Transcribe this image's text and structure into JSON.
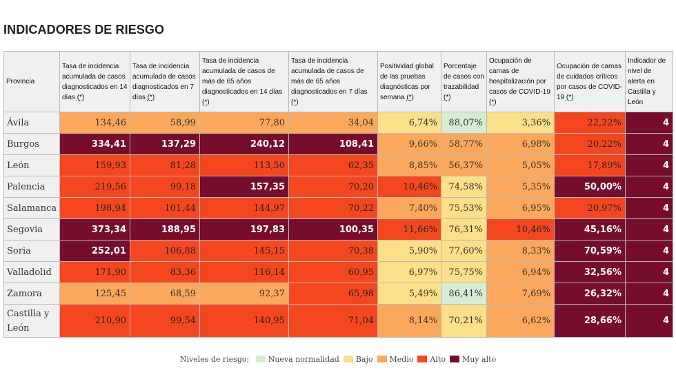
{
  "title": "INDICADORES DE RIESGO",
  "headers": [
    {
      "text": "Provincia",
      "note": ""
    },
    {
      "text": "Tasa de incidencia acumulada de casos diagnosticados en 14 días ",
      "note": "(*)"
    },
    {
      "text": "Tasa de incidencia acumulada de casos diagnosticados en 7 días ",
      "note": "(*)"
    },
    {
      "text": "Tasa de incidencia acumulada de casos de más de 65 años diagnosticados en 14 días ",
      "note": "(*)"
    },
    {
      "text": "Tasa de incidencia acumulada de casos de más de 65 años diagnosticados en 7 días ",
      "note": "(*)"
    },
    {
      "text": "Positividad global de las pruebas diagnósticas por semana ",
      "note": "(*)"
    },
    {
      "text": "Porcentaje de casos con trazabilidad ",
      "note": "(*)"
    },
    {
      "text": "Ocupación de camas de hospitalización por casos de COVID-19 ",
      "note": "(*)"
    },
    {
      "text": "Ocupación de camas de cuidados críticos por casos de COVID-19 ",
      "note": "(*)"
    },
    {
      "text": "Indicador de nivel de alerta en Castilla y León",
      "note": ""
    }
  ],
  "rows": [
    {
      "name": "Ávila",
      "cells": [
        "134,46",
        "58,99",
        "77,80",
        "34,04",
        "6,74%",
        "88,07%",
        "3,36%",
        "22,22%",
        "4"
      ],
      "levels": [
        "medio",
        "medio",
        "medio",
        "medio",
        "bajo",
        "nueva",
        "bajo",
        "alto",
        "muyalto"
      ]
    },
    {
      "name": "Burgos",
      "cells": [
        "334,41",
        "137,29",
        "240,12",
        "108,41",
        "9,66%",
        "58,77%",
        "6,98%",
        "20,22%",
        "4"
      ],
      "levels": [
        "muyalto",
        "muyalto",
        "muyalto",
        "muyalto",
        "medio",
        "medio",
        "medio",
        "alto",
        "muyalto"
      ]
    },
    {
      "name": "León",
      "cells": [
        "159,93",
        "81,28",
        "113,50",
        "62,35",
        "8,85%",
        "56,37%",
        "5,05%",
        "17,89%",
        "4"
      ],
      "levels": [
        "alto",
        "alto",
        "alto",
        "alto",
        "medio",
        "medio",
        "medio",
        "alto",
        "muyalto"
      ]
    },
    {
      "name": "Palencia",
      "cells": [
        "219,56",
        "99,18",
        "157,35",
        "70,20",
        "10,46%",
        "74,58%",
        "5,35%",
        "50,00%",
        "4"
      ],
      "levels": [
        "alto",
        "alto",
        "muyalto",
        "alto",
        "alto",
        "bajo",
        "medio",
        "muyalto",
        "muyalto"
      ]
    },
    {
      "name": "Salamanca",
      "cells": [
        "198,94",
        "101,44",
        "144,97",
        "70,22",
        "7,40%",
        "75,53%",
        "6,95%",
        "20,97%",
        "4"
      ],
      "levels": [
        "alto",
        "alto",
        "alto",
        "alto",
        "medio",
        "bajo",
        "medio",
        "alto",
        "muyalto"
      ]
    },
    {
      "name": "Segovia",
      "cells": [
        "373,34",
        "188,95",
        "197,83",
        "100,35",
        "11,66%",
        "76,31%",
        "10,46%",
        "45,16%",
        "4"
      ],
      "levels": [
        "muyalto",
        "muyalto",
        "muyalto",
        "muyalto",
        "alto",
        "bajo",
        "alto",
        "muyalto",
        "muyalto"
      ]
    },
    {
      "name": "Soria",
      "cells": [
        "252,01",
        "106,88",
        "145,15",
        "70,38",
        "5,90%",
        "77,60%",
        "8,33%",
        "70,59%",
        "4"
      ],
      "levels": [
        "muyalto",
        "alto",
        "alto",
        "alto",
        "bajo",
        "bajo",
        "medio",
        "muyalto",
        "muyalto"
      ]
    },
    {
      "name": "Valladolid",
      "cells": [
        "171,90",
        "83,36",
        "116,14",
        "60,95",
        "6,97%",
        "75,75%",
        "6,94%",
        "32,56%",
        "4"
      ],
      "levels": [
        "alto",
        "alto",
        "alto",
        "alto",
        "bajo",
        "bajo",
        "medio",
        "muyalto",
        "muyalto"
      ]
    },
    {
      "name": "Zamora",
      "cells": [
        "125,45",
        "68,59",
        "92,37",
        "65,98",
        "5,49%",
        "86,41%",
        "7,69%",
        "26,32%",
        "4"
      ],
      "levels": [
        "medio",
        "medio",
        "medio",
        "alto",
        "bajo",
        "nueva",
        "medio",
        "muyalto",
        "muyalto"
      ]
    },
    {
      "name": "Castilla y León",
      "cells": [
        "210,90",
        "99,54",
        "140,95",
        "71,04",
        "8,14%",
        "70,21%",
        "6,62%",
        "28,66%",
        "4"
      ],
      "levels": [
        "alto",
        "alto",
        "alto",
        "alto",
        "medio",
        "bajo",
        "medio",
        "muyalto",
        "muyalto"
      ]
    }
  ],
  "legend": {
    "title": "Niveles de riesgo:",
    "items": [
      {
        "label": "Nueva normalidad",
        "color": "#d8ecd3"
      },
      {
        "label": "Bajo",
        "color": "#fbdf89"
      },
      {
        "label": "Medio",
        "color": "#fba85c"
      },
      {
        "label": "Alto",
        "color": "#f5471f"
      },
      {
        "label": "Muy alto",
        "color": "#760d2d"
      }
    ]
  }
}
